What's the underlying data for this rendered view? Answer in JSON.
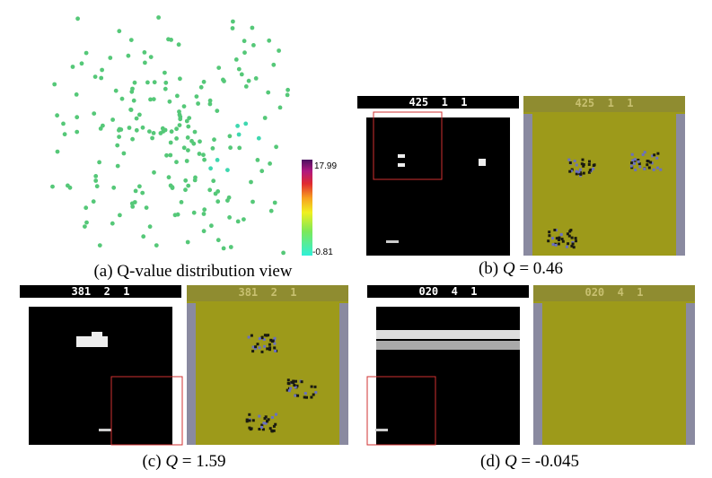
{
  "scatter": {
    "caption": "(a) Q-value distribution view",
    "colorbar_max": "17.99",
    "colorbar_min": "-0.81"
  },
  "frames": [
    {
      "score": "425  1  1",
      "caption_label": "(b)",
      "caption_var": "Q",
      "caption_value": "= 0.46"
    },
    {
      "score": "381  2  1",
      "caption_label": "(c)",
      "caption_var": "Q",
      "caption_value": "= 1.59"
    },
    {
      "score": "020  4  1",
      "caption_label": "(d)",
      "caption_var": "Q",
      "caption_value": "= -0.045"
    }
  ]
}
